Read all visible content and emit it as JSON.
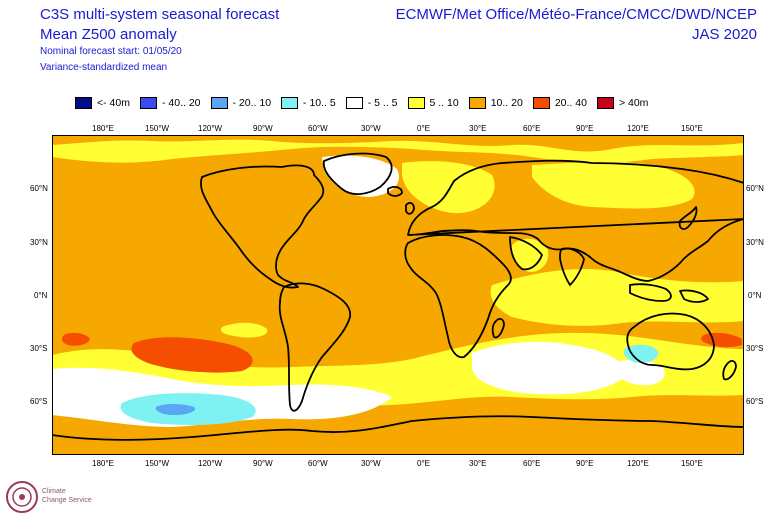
{
  "header": {
    "title_line1": "C3S multi-system seasonal forecast",
    "title_line2": "Mean Z500 anomaly",
    "subtitle_line1": "Nominal forecast start: 01/05/20",
    "subtitle_line2": "Variance-standardized mean",
    "source": "ECMWF/Met Office/Météo-France/CMCC/DWD/NCEP",
    "period": "JAS 2020"
  },
  "legend": [
    {
      "label": "<- 40m",
      "color": "#000c8c"
    },
    {
      "label": "- 40.. 20",
      "color": "#3a4cf0"
    },
    {
      "label": "- 20.. 10",
      "color": "#5aa6f2"
    },
    {
      "label": "- 10.. 5",
      "color": "#7ef2f2"
    },
    {
      "label": "- 5 .. 5",
      "color": "#ffffff"
    },
    {
      "label": "5 .. 10",
      "color": "#ffff33"
    },
    {
      "label": "10.. 20",
      "color": "#f7a800"
    },
    {
      "label": "20.. 40",
      "color": "#f54e00"
    },
    {
      "label": "> 40m",
      "color": "#c80018"
    }
  ],
  "axes": {
    "lon_labels": [
      "180°E",
      "150°W",
      "120°W",
      "90°W",
      "60°W",
      "30°W",
      "0°E",
      "30°E",
      "60°E",
      "90°E",
      "120°E",
      "150°E"
    ],
    "lat_labels": [
      "60°N",
      "30°N",
      "0°N",
      "30°S",
      "60°S"
    ]
  },
  "logo": {
    "line1": "Climate",
    "line2": "Change Service"
  }
}
